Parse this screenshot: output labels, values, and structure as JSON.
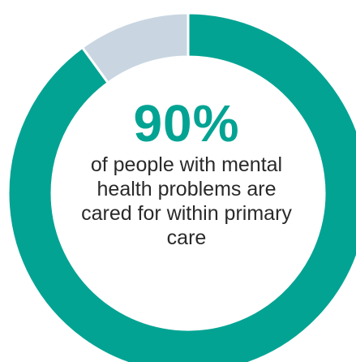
{
  "chart_data": {
    "type": "pie",
    "variant": "donut",
    "slices": [
      {
        "value": 90,
        "color": "#03a393"
      },
      {
        "value": 10,
        "color": "#c9d6e1"
      }
    ],
    "center_value": "90%",
    "center_caption": "of people with mental health problems are cared for within primary care"
  },
  "colors": {
    "accent": "#03a393",
    "remainder": "#c9d6e1",
    "caption_text": "#2a2a2a"
  }
}
